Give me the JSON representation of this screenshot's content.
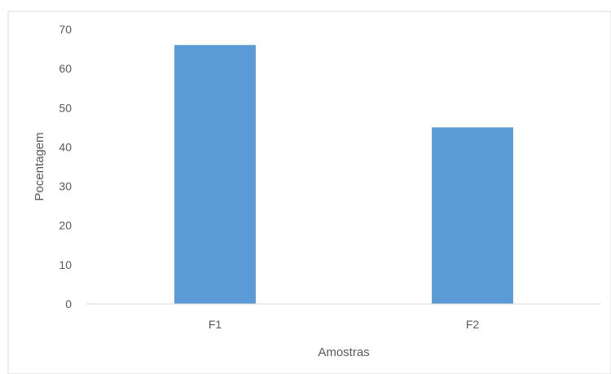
{
  "chart_data": {
    "type": "bar",
    "title": "",
    "categories": [
      "F1",
      "F2"
    ],
    "values": [
      66,
      45
    ],
    "xlabel": "Amostras",
    "ylabel": "Pocentagem",
    "ylim": [
      0,
      70
    ],
    "yticks": [
      0,
      10,
      20,
      30,
      40,
      50,
      60,
      70
    ],
    "grid": false,
    "legend": "none",
    "colors": {
      "bar": "#5B9BD5",
      "axis_line": "#D9D9D9",
      "border": "#D9D9D9",
      "text": "#595959"
    }
  }
}
